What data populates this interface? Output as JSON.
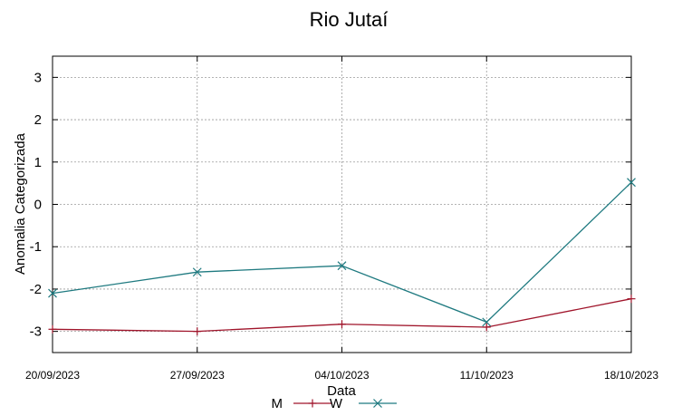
{
  "chart_data": {
    "type": "line",
    "title": "Rio Jutaí",
    "xlabel": "Data",
    "ylabel": "Anomalia Categorizada",
    "categories": [
      "20/09/2023",
      "27/09/2023",
      "04/10/2023",
      "11/10/2023",
      "18/10/2023"
    ],
    "ylim": [
      -3.5,
      3.5
    ],
    "yticks": [
      -3,
      -2,
      -1,
      0,
      1,
      2,
      3
    ],
    "grid": true,
    "legend_position": "bottom-center",
    "series": [
      {
        "name": "M",
        "color": "#a0152b",
        "marker": "plus",
        "values": [
          -2.95,
          -3.0,
          -2.83,
          -2.9,
          -2.23
        ]
      },
      {
        "name": "W",
        "color": "#1f7a80",
        "marker": "cross",
        "values": [
          -2.1,
          -1.6,
          -1.45,
          -2.78,
          0.52
        ]
      }
    ]
  }
}
